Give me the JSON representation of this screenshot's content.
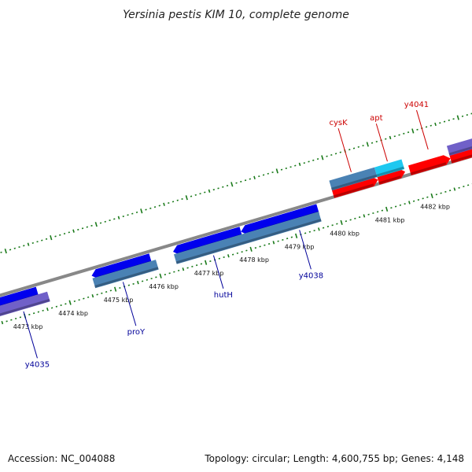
{
  "title": "Yersinia pestis KIM 10, complete genome",
  "footer": {
    "accession": "Accession: NC_004088",
    "summary": "Topology: circular; Length: 4,600,755 bp; Genes: 4,148"
  },
  "colors": {
    "forward_cds": "#ff0000",
    "reverse_cds": "#0000ee",
    "feature_forward": "#1ec8f0",
    "feature_steel": "#4a82b4",
    "feature_purple": "#7060c8",
    "backbone": "#888888",
    "ticks": "#1a7a1a",
    "label_forward": "#cc0000",
    "label_reverse": "#000099"
  },
  "ticks": {
    "start_kbp": 4473,
    "end_kbp": 4482,
    "unit": "kbp"
  },
  "features": [
    {
      "name": "cds-reverse-1",
      "track": "reverse",
      "start": 4472.4,
      "end": 4473.4,
      "dir": -1
    },
    {
      "name": "cds-reverse-2",
      "track": "reverse",
      "start": 4474.6,
      "end": 4475.9,
      "dir": -1
    },
    {
      "name": "cds-reverse-3",
      "track": "reverse",
      "start": 4476.4,
      "end": 4477.9,
      "dir": -1
    },
    {
      "name": "cds-reverse-4",
      "track": "reverse",
      "start": 4477.9,
      "end": 4479.6,
      "dir": -1
    },
    {
      "name": "feature-reverse-1",
      "track": "reverse-feature",
      "start": 4472.4,
      "end": 4473.6,
      "color": "purple"
    },
    {
      "name": "feature-reverse-2",
      "track": "reverse-feature",
      "start": 4474.6,
      "end": 4476.0,
      "color": "steel"
    },
    {
      "name": "feature-reverse-3",
      "track": "reverse-feature",
      "start": 4476.4,
      "end": 4479.6,
      "color": "steel"
    },
    {
      "name": "cds-forward-1",
      "track": "forward",
      "start": 4480.0,
      "end": 4481.0,
      "dir": 1
    },
    {
      "name": "cds-forward-2",
      "track": "forward",
      "start": 4481.0,
      "end": 4481.6,
      "dir": 1
    },
    {
      "name": "cds-forward-3",
      "track": "forward",
      "start": 4481.7,
      "end": 4482.6,
      "dir": 1
    },
    {
      "name": "cds-forward-4",
      "track": "forward",
      "start": 4482.6,
      "end": 4483.2,
      "dir": 1
    },
    {
      "name": "feature-forward-1",
      "track": "forward-feature",
      "start": 4480.0,
      "end": 4481.0,
      "color": "steel"
    },
    {
      "name": "feature-forward-2",
      "track": "forward-feature",
      "start": 4481.0,
      "end": 4481.6,
      "color": "forward"
    },
    {
      "name": "feature-forward-3",
      "track": "forward-feature",
      "start": 4482.6,
      "end": 4483.2,
      "color": "purple"
    }
  ],
  "labels": [
    {
      "text": "y4035",
      "strand": "reverse",
      "pos": 4473.0,
      "depth": 62
    },
    {
      "text": "proY",
      "strand": "reverse",
      "pos": 4475.2,
      "depth": 58
    },
    {
      "text": "hutH",
      "strand": "reverse",
      "pos": 4477.2,
      "depth": 44
    },
    {
      "text": "y4038",
      "strand": "reverse",
      "pos": 4479.1,
      "depth": 52
    },
    {
      "text": "cysK",
      "strand": "forward",
      "pos": 4480.5,
      "depth": 58
    },
    {
      "text": "apt",
      "strand": "forward",
      "pos": 4481.3,
      "depth": 50
    },
    {
      "text": "y4041",
      "strand": "forward",
      "pos": 4482.2,
      "depth": 52
    }
  ]
}
